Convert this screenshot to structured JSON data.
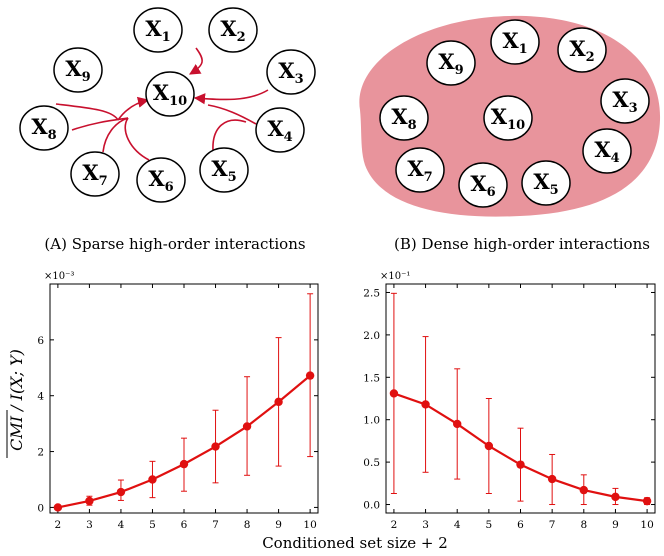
{
  "colors": {
    "accent": "#e01010",
    "blob": "#e8949c",
    "arrow": "#c8102e"
  },
  "diagrams": {
    "a": {
      "caption": "(A) Sparse high-order interactions",
      "nodes": [
        "X1",
        "X2",
        "X3",
        "X4",
        "X5",
        "X6",
        "X7",
        "X8",
        "X9",
        "X10"
      ]
    },
    "b": {
      "caption": "(B) Dense high-order interactions",
      "nodes": [
        "X1",
        "X2",
        "X3",
        "X4",
        "X5",
        "X6",
        "X7",
        "X8",
        "X9",
        "X10"
      ]
    }
  },
  "ylabel": "CMI / I(X; Y)",
  "xlabel": "Conditioned set size + 2",
  "chart_data": [
    {
      "type": "line",
      "exponent_label": "×10⁻³",
      "x": [
        2,
        3,
        4,
        5,
        6,
        7,
        8,
        9,
        10
      ],
      "xticks": [
        "2",
        "3",
        "4",
        "5",
        "6",
        "7",
        "8",
        "9",
        "10"
      ],
      "yticks": [
        "0",
        "2",
        "4",
        "6"
      ],
      "xlim": [
        1.75,
        10.25
      ],
      "ylim": [
        -0.2,
        8.0
      ],
      "series": [
        {
          "values": [
            0.0,
            0.23,
            0.55,
            1.0,
            1.55,
            2.18,
            2.9,
            3.78,
            4.72
          ],
          "err_low": [
            0.0,
            0.08,
            0.25,
            0.35,
            0.58,
            0.88,
            1.15,
            1.48,
            1.82
          ],
          "err_high": [
            0.0,
            0.4,
            0.98,
            1.65,
            2.48,
            3.48,
            4.68,
            6.08,
            7.65
          ]
        }
      ]
    },
    {
      "type": "line",
      "exponent_label": "×10⁻¹",
      "x": [
        2,
        3,
        4,
        5,
        6,
        7,
        8,
        9,
        10
      ],
      "xticks": [
        "2",
        "3",
        "4",
        "5",
        "6",
        "7",
        "8",
        "9",
        "10"
      ],
      "yticks": [
        "0.0",
        "0.5",
        "1.0",
        "1.5",
        "2.0",
        "2.5"
      ],
      "xlim": [
        1.75,
        10.25
      ],
      "ylim": [
        -0.1,
        2.6
      ],
      "series": [
        {
          "values": [
            1.31,
            1.18,
            0.95,
            0.69,
            0.47,
            0.3,
            0.17,
            0.09,
            0.04
          ],
          "err_low": [
            0.13,
            0.38,
            0.3,
            0.13,
            0.04,
            0.0,
            0.0,
            0.0,
            0.0
          ],
          "err_high": [
            2.49,
            1.98,
            1.6,
            1.25,
            0.9,
            0.59,
            0.35,
            0.19,
            0.08
          ]
        }
      ]
    }
  ]
}
